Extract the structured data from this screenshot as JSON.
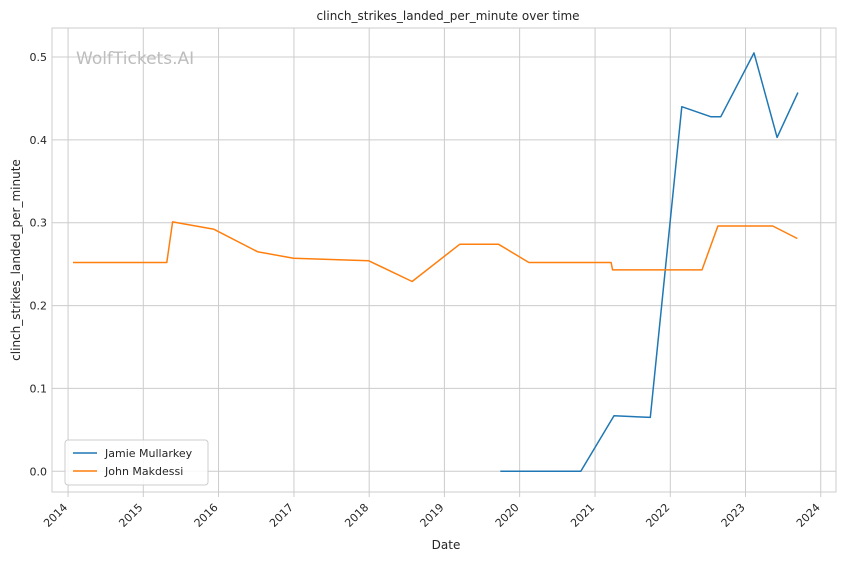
{
  "chart_data": {
    "type": "line",
    "title": "clinch_strikes_landed_per_minute over time",
    "xlabel": "Date",
    "ylabel": "clinch_strikes_landed_per_minute",
    "watermark": "WolfTickets.AI",
    "x_ticks": [
      "2014",
      "2015",
      "2016",
      "2017",
      "2018",
      "2019",
      "2020",
      "2021",
      "2022",
      "2023",
      "2024"
    ],
    "y_ticks": [
      "0.0",
      "0.1",
      "0.2",
      "0.3",
      "0.4",
      "0.5"
    ],
    "xlim": [
      "2013-10-15",
      "2024-03-15"
    ],
    "ylim": [
      -0.025,
      0.535
    ],
    "grid": true,
    "legend_position": "lower-left",
    "series": [
      {
        "name": "Jamie Mullarkey",
        "color": "#1f77b4",
        "points": [
          [
            "2019-09-29",
            0.0
          ],
          [
            "2020-10-24",
            0.0
          ],
          [
            "2021-04-03",
            0.067
          ],
          [
            "2021-09-26",
            0.065
          ],
          [
            "2022-02-26",
            0.44
          ],
          [
            "2022-07-16",
            0.428
          ],
          [
            "2022-09-03",
            0.428
          ],
          [
            "2023-02-11",
            0.505
          ],
          [
            "2023-06-03",
            0.403
          ],
          [
            "2023-09-12",
            0.457
          ]
        ]
      },
      {
        "name": "John Makdessi",
        "color": "#ff7f0e",
        "points": [
          [
            "2014-01-25",
            0.252
          ],
          [
            "2015-04-25",
            0.252
          ],
          [
            "2015-05-23",
            0.301
          ],
          [
            "2015-12-10",
            0.292
          ],
          [
            "2016-07-08",
            0.265
          ],
          [
            "2016-12-30",
            0.257
          ],
          [
            "2017-12-30",
            0.254
          ],
          [
            "2018-07-28",
            0.229
          ],
          [
            "2019-03-16",
            0.274
          ],
          [
            "2019-09-21",
            0.274
          ],
          [
            "2020-02-15",
            0.252
          ],
          [
            "2021-03-20",
            0.252
          ],
          [
            "2021-03-27",
            0.243
          ],
          [
            "2022-06-04",
            0.243
          ],
          [
            "2022-08-20",
            0.296
          ],
          [
            "2023-05-13",
            0.296
          ],
          [
            "2023-09-09",
            0.281
          ]
        ]
      }
    ]
  }
}
